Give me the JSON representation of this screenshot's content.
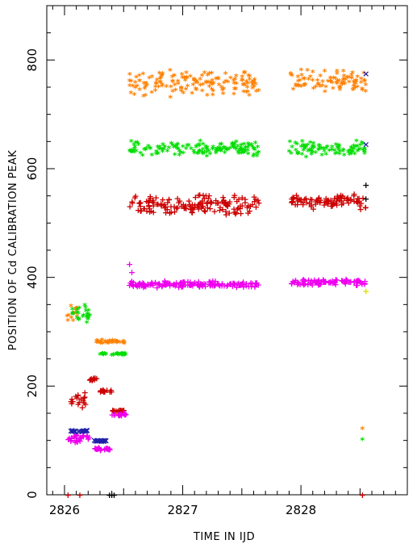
{
  "chart_data": {
    "type": "scatter",
    "title": "",
    "xlabel": "TIME IN IJD",
    "ylabel": "POSITION OF Cd CALIBRATION PEAK",
    "xlim": [
      2825.85,
      2828.9
    ],
    "ylim": [
      0,
      900
    ],
    "xticks": [
      2826,
      2827,
      2828
    ],
    "yticks": [
      0,
      200,
      400,
      600,
      800
    ],
    "grid": false,
    "legend": "none",
    "series": [
      {
        "color": "#ff7f00",
        "marker": "*",
        "segments": [
          {
            "x0": 2826.55,
            "x1": 2827.65,
            "y": 755,
            "spread": 25
          },
          {
            "x0": 2827.9,
            "x1": 2828.55,
            "y": 760,
            "spread": 22
          },
          {
            "x0": 2826.27,
            "x1": 2826.52,
            "y": 280,
            "spread": 4
          },
          {
            "x0": 2826.02,
            "x1": 2826.12,
            "y": 335,
            "spread": 18
          }
        ],
        "points": [
          [
            2828.52,
            120
          ]
        ]
      },
      {
        "color": "#00dd00",
        "marker": "*",
        "segments": [
          {
            "x0": 2826.55,
            "x1": 2827.65,
            "y": 635,
            "spread": 16
          },
          {
            "x0": 2827.9,
            "x1": 2828.55,
            "y": 635,
            "spread": 16
          },
          {
            "x0": 2826.3,
            "x1": 2826.52,
            "y": 257,
            "spread": 3
          },
          {
            "x0": 2826.05,
            "x1": 2826.22,
            "y": 330,
            "spread": 18
          }
        ],
        "points": [
          [
            2828.52,
            100
          ]
        ]
      },
      {
        "color": "#cc0000",
        "marker": "+",
        "segments": [
          {
            "x0": 2826.55,
            "x1": 2827.65,
            "y": 535,
            "spread": 20
          },
          {
            "x0": 2827.9,
            "x1": 2828.55,
            "y": 540,
            "spread": 15
          },
          {
            "x0": 2826.3,
            "x1": 2826.4,
            "y": 192,
            "spread": 3
          },
          {
            "x0": 2826.4,
            "x1": 2826.52,
            "y": 155,
            "spread": 3
          },
          {
            "x0": 2826.2,
            "x1": 2826.28,
            "y": 213,
            "spread": 3
          },
          {
            "x0": 2826.05,
            "x1": 2826.18,
            "y": 175,
            "spread": 15
          }
        ],
        "points": [
          [
            2826.03,
            0
          ],
          [
            2826.13,
            0
          ],
          [
            2828.52,
            0
          ]
        ]
      },
      {
        "color": "#ee00ee",
        "marker": "+",
        "segments": [
          {
            "x0": 2826.55,
            "x1": 2827.65,
            "y": 388,
            "spread": 7
          },
          {
            "x0": 2827.9,
            "x1": 2828.55,
            "y": 392,
            "spread": 6
          },
          {
            "x0": 2826.4,
            "x1": 2826.52,
            "y": 148,
            "spread": 3
          },
          {
            "x0": 2826.25,
            "x1": 2826.4,
            "y": 85,
            "spread": 3
          },
          {
            "x0": 2826.02,
            "x1": 2826.22,
            "y": 105,
            "spread": 10
          }
        ],
        "points": [
          [
            2826.55,
            425
          ],
          [
            2826.57,
            410
          ]
        ]
      },
      {
        "color": "#2020aa",
        "marker": "x",
        "segments": [
          {
            "x0": 2826.05,
            "x1": 2826.2,
            "y": 118,
            "spread": 2
          },
          {
            "x0": 2826.25,
            "x1": 2826.38,
            "y": 100,
            "spread": 2
          }
        ],
        "points": [
          [
            2828.55,
            775
          ],
          [
            2828.55,
            645
          ]
        ]
      },
      {
        "color": "#000000",
        "marker": "+",
        "segments": [],
        "points": [
          [
            2828.55,
            570
          ],
          [
            2828.55,
            545
          ],
          [
            2826.38,
            0
          ],
          [
            2826.4,
            0
          ],
          [
            2826.42,
            0
          ]
        ]
      },
      {
        "color": "#dddd00",
        "marker": "+",
        "segments": [],
        "points": [
          [
            2828.55,
            375
          ]
        ]
      }
    ]
  }
}
